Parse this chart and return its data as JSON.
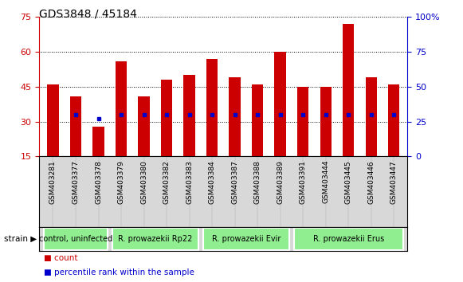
{
  "title": "GDS3848 / 45184",
  "samples": [
    "GSM403281",
    "GSM403377",
    "GSM403378",
    "GSM403379",
    "GSM403380",
    "GSM403382",
    "GSM403383",
    "GSM403384",
    "GSM403387",
    "GSM403388",
    "GSM403389",
    "GSM403391",
    "GSM403444",
    "GSM403445",
    "GSM403446",
    "GSM403447"
  ],
  "counts": [
    46,
    41,
    28,
    56,
    41,
    48,
    50,
    57,
    49,
    46,
    60,
    45,
    45,
    72,
    49,
    46
  ],
  "percentile_ranks": [
    null,
    30,
    27,
    30,
    30,
    30,
    30,
    30,
    30,
    30,
    30,
    30,
    30,
    30,
    30,
    30
  ],
  "group_labels": [
    "control, uninfected",
    "R. prowazekii Rp22",
    "R. prowazekii Evir",
    "R. prowazekii Erus"
  ],
  "group_starts": [
    0,
    3,
    7,
    11
  ],
  "group_ends": [
    2,
    6,
    10,
    15
  ],
  "group_color": "#90EE90",
  "ylim_left": [
    15,
    75
  ],
  "ylim_right": [
    0,
    100
  ],
  "yticks_left": [
    15,
    30,
    45,
    60,
    75
  ],
  "yticks_right": [
    0,
    25,
    50,
    75,
    100
  ],
  "bar_color": "#cc0000",
  "dot_color": "#0000cc",
  "title_color": "#000000",
  "left_axis_color": "#cc0000",
  "right_axis_color": "#0000cc",
  "grid_color": "#000000",
  "background_color": "#ffffff",
  "plot_bg_color": "#ffffff",
  "legend_count_label": "count",
  "legend_pct_label": "percentile rank within the sample"
}
